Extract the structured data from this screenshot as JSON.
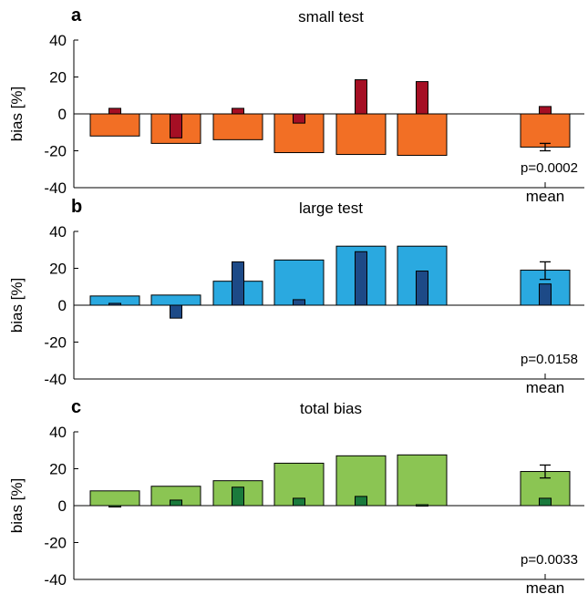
{
  "chart_data": [
    {
      "type": "bar",
      "panel_label": "a",
      "title": "small test",
      "ylabel": "bias [%]",
      "ylim": [
        -40,
        40
      ],
      "yticks": [
        "40",
        "20",
        "0",
        "-20",
        "-40"
      ],
      "x_tick_label": "mean",
      "p_value": "p=0.0002",
      "colors": {
        "outer": "#f26f25",
        "inner": "#a50f24"
      },
      "series": [
        {
          "name": "",
          "values": [
            -12,
            -16,
            -14,
            -21,
            -22,
            -22.5,
            -18
          ]
        },
        {
          "name": "",
          "values": [
            3,
            -13,
            3,
            -5,
            18.5,
            17.5,
            4
          ]
        }
      ],
      "mean_error": {
        "low": -20,
        "high": -16
      }
    },
    {
      "type": "bar",
      "panel_label": "b",
      "title": "large test",
      "ylabel": "bias [%]",
      "ylim": [
        -40,
        40
      ],
      "yticks": [
        "40",
        "20",
        "0",
        "-20",
        "-40"
      ],
      "x_tick_label": "mean",
      "p_value": "p=0.0158",
      "colors": {
        "outer": "#2aa9e0",
        "inner": "#1d4a87"
      },
      "series": [
        {
          "name": "",
          "values": [
            5,
            5.5,
            13,
            24.5,
            32,
            32,
            19
          ]
        },
        {
          "name": "",
          "values": [
            1,
            -7,
            23.5,
            3,
            29,
            18.5,
            11.5
          ]
        }
      ],
      "mean_error": {
        "low": 14,
        "high": 23.5
      }
    },
    {
      "type": "bar",
      "panel_label": "c",
      "title": "total bias",
      "ylabel": "bias [%]",
      "ylim": [
        -40,
        40
      ],
      "yticks": [
        "40",
        "20",
        "0",
        "-20",
        "-40"
      ],
      "x_tick_label": "mean",
      "p_value": "p=0.0033",
      "colors": {
        "outer": "#8bc553",
        "inner": "#1a7a3c"
      },
      "series": [
        {
          "name": "",
          "values": [
            8,
            10.5,
            13.5,
            23,
            27,
            27.5,
            18.5
          ]
        },
        {
          "name": "",
          "values": [
            -0.5,
            3,
            10,
            4,
            5,
            0.5,
            4
          ]
        }
      ],
      "mean_error": {
        "low": 15,
        "high": 22
      }
    }
  ]
}
